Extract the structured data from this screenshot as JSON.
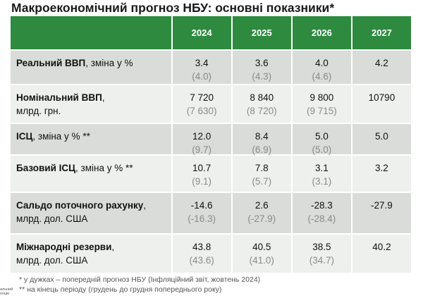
{
  "title": "Макроекономічний прогноз НБУ: основні показники*",
  "header": {
    "years": [
      "2024",
      "2025",
      "2026",
      "2027"
    ]
  },
  "rows": [
    {
      "label_bold": "Реальний ВВП",
      "label_rest": ", зміна у %",
      "label_line2": "",
      "values": [
        {
          "cur": "3.4",
          "prev": "(4.0)"
        },
        {
          "cur": "3.6",
          "prev": "(4.3)"
        },
        {
          "cur": "4.0",
          "prev": "(4.6)"
        },
        {
          "cur": "4.2",
          "prev": ""
        }
      ]
    },
    {
      "label_bold": "Номінальний ВВП",
      "label_rest": ",",
      "label_line2": "млрд. грн.",
      "values": [
        {
          "cur": "7 720",
          "prev": "(7 630)"
        },
        {
          "cur": "8 840",
          "prev": "(8 720)"
        },
        {
          "cur": "9 800",
          "prev": "(9 715)"
        },
        {
          "cur": "10790",
          "prev": ""
        }
      ]
    },
    {
      "label_bold": "ІСЦ",
      "label_rest": ", зміна у % **",
      "label_line2": "",
      "values": [
        {
          "cur": "12.0",
          "prev": "(9.7)"
        },
        {
          "cur": "8.4",
          "prev": "(6.9)"
        },
        {
          "cur": "5.0",
          "prev": "(5.0)"
        },
        {
          "cur": "5.0",
          "prev": ""
        }
      ]
    },
    {
      "label_bold": "Базовий ІСЦ",
      "label_rest": ", зміна у % **",
      "label_line2": "",
      "values": [
        {
          "cur": "10.7",
          "prev": "(9.1)"
        },
        {
          "cur": "7.8",
          "prev": "(5.7)"
        },
        {
          "cur": "3.1",
          "prev": "(3.1)"
        },
        {
          "cur": "3.2",
          "prev": ""
        }
      ]
    },
    {
      "label_bold": "Сальдо поточного рахунку",
      "label_rest": ",",
      "label_line2": "млрд. дол. США",
      "values": [
        {
          "cur": "-14.6",
          "prev": "(-16.3)"
        },
        {
          "cur": "2.6",
          "prev": "(-27.9)"
        },
        {
          "cur": "-28.3",
          "prev": "(-28.4)"
        },
        {
          "cur": "-27.9",
          "prev": ""
        }
      ]
    },
    {
      "label_bold": "Міжнародні резерви",
      "label_rest": ",",
      "label_line2": "млрд. дол. США",
      "values": [
        {
          "cur": "43.8",
          "prev": "(43.6)"
        },
        {
          "cur": "40.5",
          "prev": "(41.0)"
        },
        {
          "cur": "38.5",
          "prev": "(34.7)"
        },
        {
          "cur": "40.2",
          "prev": ""
        }
      ]
    }
  ],
  "footnotes": {
    "note1": "* у дужках – попередній прогноз НБУ (Інфляційний звіт, жовтень 2024)",
    "note2": "** на кінець періоду (грудень до грудня попереднього року)"
  },
  "logo_text": [
    "альний",
    "хоціи"
  ],
  "colors": {
    "header_green": "#2d8a3f",
    "row_dark": "#d9dcd8",
    "row_light": "#eef0ed",
    "prev_grey": "#8a8a8a"
  }
}
